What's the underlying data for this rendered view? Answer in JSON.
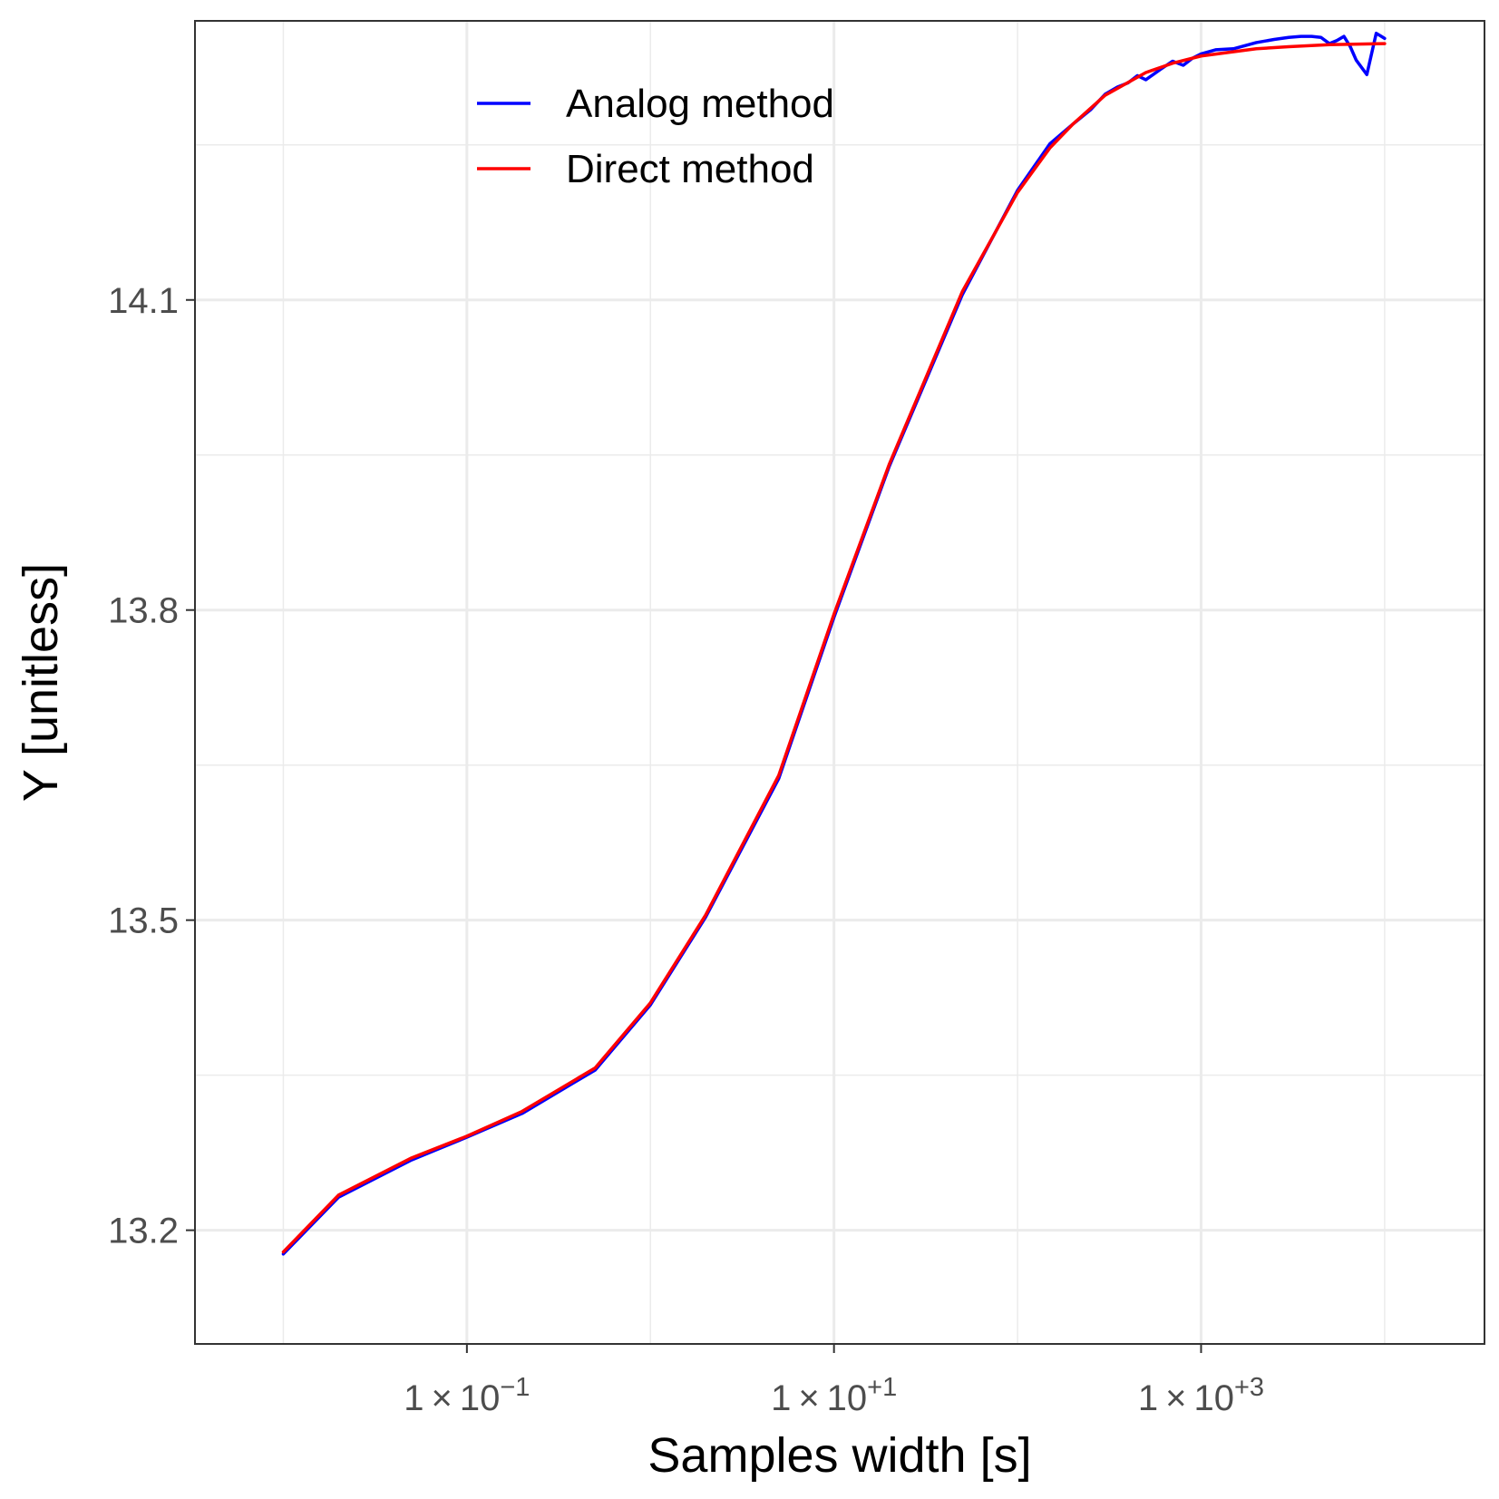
{
  "chart_data": {
    "type": "line",
    "title": "",
    "xlabel": "Samples width [s]",
    "ylabel": "Y [unitless]",
    "x_scale": "log10",
    "xlim": [
      0.0033,
      35000
    ],
    "ylim": [
      13.09,
      14.37
    ],
    "x_ticks": [
      {
        "value": 0.1,
        "mantissa": "1",
        "times": "×",
        "base": "10",
        "exponent": "−1"
      },
      {
        "value": 10,
        "mantissa": "1",
        "times": "×",
        "base": "10",
        "exponent": "+1"
      },
      {
        "value": 1000,
        "mantissa": "1",
        "times": "×",
        "base": "10",
        "exponent": "+3"
      }
    ],
    "x_minor_ticks": [
      0.01,
      1,
      100,
      10000
    ],
    "y_ticks": [
      {
        "value": 13.2,
        "label": "13.2"
      },
      {
        "value": 13.5,
        "label": "13.5"
      },
      {
        "value": 13.8,
        "label": "13.8"
      },
      {
        "value": 14.1,
        "label": "14.1"
      }
    ],
    "y_minor_ticks": [
      13.35,
      13.65,
      13.95,
      14.25
    ],
    "grid": true,
    "legend_position": "top-center",
    "series": [
      {
        "name": "Analog method",
        "color": "#0000FF",
        "x": [
          0.01,
          0.02,
          0.05,
          0.1,
          0.2,
          0.5,
          1,
          2,
          5,
          10,
          20,
          50,
          100,
          150,
          200,
          250,
          300,
          350,
          400,
          450,
          500,
          600,
          700,
          800,
          900,
          1000,
          1200,
          1500,
          2000,
          2500,
          3000,
          3500,
          4000,
          4500,
          5000,
          5500,
          6000,
          6500,
          7000,
          8000,
          9000,
          10000
        ],
        "y": [
          13.177,
          13.232,
          13.268,
          13.29,
          13.313,
          13.355,
          13.418,
          13.503,
          13.637,
          13.793,
          13.939,
          14.105,
          14.206,
          14.251,
          14.27,
          14.284,
          14.299,
          14.306,
          14.31,
          14.317,
          14.313,
          14.323,
          14.331,
          14.327,
          14.334,
          14.338,
          14.342,
          14.343,
          14.349,
          14.352,
          14.354,
          14.355,
          14.355,
          14.354,
          14.348,
          14.351,
          14.355,
          14.345,
          14.332,
          14.318,
          14.358,
          14.353
        ]
      },
      {
        "name": "Direct method",
        "color": "#FF0000",
        "x": [
          0.01,
          0.02,
          0.05,
          0.1,
          0.2,
          0.5,
          1,
          2,
          5,
          10,
          20,
          50,
          100,
          150,
          200,
          300,
          500,
          700,
          1000,
          2000,
          3000,
          5000,
          10000
        ],
        "y": [
          13.179,
          13.234,
          13.27,
          13.291,
          13.315,
          13.357,
          13.42,
          13.505,
          13.64,
          13.796,
          13.941,
          14.108,
          14.204,
          14.247,
          14.27,
          14.298,
          14.32,
          14.329,
          14.336,
          14.343,
          14.345,
          14.347,
          14.348
        ]
      }
    ]
  }
}
